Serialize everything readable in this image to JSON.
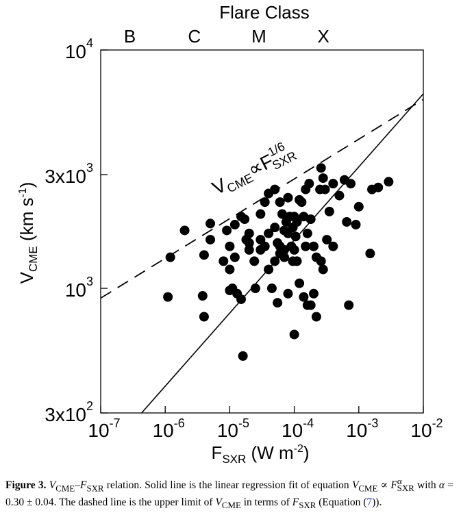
{
  "chart_data": {
    "type": "scatter",
    "top_title": "Flare Class",
    "flare_classes": [
      {
        "label": "B",
        "x": 3.2e-07
      },
      {
        "label": "C",
        "x": 3.2e-06
      },
      {
        "label": "M",
        "x": 3.2e-05
      },
      {
        "label": "X",
        "x": 0.00032
      }
    ],
    "xlabel": {
      "base": "F",
      "sub": "SXR",
      "units": " (W m",
      "exp": "-2",
      "close": ")"
    },
    "ylabel": {
      "base": "V",
      "sub": "CME",
      "units": " (km s",
      "exp": "-1",
      "close": ")"
    },
    "x_scale": "log",
    "y_scale": "log",
    "xlim": [
      1e-07,
      0.01
    ],
    "ylim": [
      300,
      10000
    ],
    "x_ticks": [
      {
        "value": 1e-07,
        "base": "10",
        "exp": "-7"
      },
      {
        "value": 1e-06,
        "base": "10",
        "exp": "-6"
      },
      {
        "value": 1e-05,
        "base": "10",
        "exp": "-5"
      },
      {
        "value": 0.0001,
        "base": "10",
        "exp": "-4"
      },
      {
        "value": 0.001,
        "base": "10",
        "exp": "-3"
      },
      {
        "value": 0.01,
        "base": "10",
        "exp": "-2"
      }
    ],
    "y_ticks": [
      {
        "value": 10000,
        "base": "10",
        "exp": "4"
      },
      {
        "value": 3000,
        "base": "3x10",
        "exp": "3"
      },
      {
        "value": 1000,
        "base": "10",
        "exp": "3"
      },
      {
        "value": 300,
        "base": "3x10",
        "exp": "2"
      }
    ],
    "solid_fit": {
      "alpha": 0.3,
      "x1": 4.3e-07,
      "y1": 300,
      "x2": 0.0105,
      "y2": 6650
    },
    "dashed_limit": {
      "exponent": "1/6",
      "x1": 1e-07,
      "y1": 910,
      "x2": 0.01,
      "y2": 6200
    },
    "dashed_label": {
      "base": "V",
      "sub1": "CME",
      "rel": "∝",
      "base2": "F",
      "exp": "1/6",
      "sub2": "SXR"
    },
    "points": [
      [
        1.2e-06,
        1350
      ],
      [
        1.1e-06,
        920
      ],
      [
        2e-06,
        1750
      ],
      [
        3.8e-06,
        930
      ],
      [
        4e-06,
        760
      ],
      [
        4e-06,
        1380
      ],
      [
        5e-06,
        1600
      ],
      [
        5e-06,
        1870
      ],
      [
        9e-06,
        1750
      ],
      [
        1e-05,
        1500
      ],
      [
        1e-05,
        1200
      ],
      [
        1e-05,
        980
      ],
      [
        1.1e-05,
        1000
      ],
      [
        1.2e-05,
        1850
      ],
      [
        1.5e-05,
        2000
      ],
      [
        1.5e-05,
        900
      ],
      [
        1.6e-05,
        520
      ],
      [
        1.7e-05,
        1950
      ],
      [
        1.8e-05,
        1600
      ],
      [
        2e-05,
        1550
      ],
      [
        2e-05,
        1450
      ],
      [
        2.5e-05,
        1000
      ],
      [
        3e-05,
        1600
      ],
      [
        3e-05,
        2050
      ],
      [
        3.5e-05,
        1500
      ],
      [
        3.5e-05,
        2300
      ],
      [
        4e-05,
        1200
      ],
      [
        4e-05,
        2500
      ],
      [
        5e-05,
        2600
      ],
      [
        4.5e-05,
        1000
      ],
      [
        5e-05,
        1800
      ],
      [
        5.5e-05,
        1550
      ],
      [
        6e-05,
        1500
      ],
      [
        6e-05,
        1400
      ],
      [
        6.5e-05,
        2050
      ],
      [
        7e-05,
        1350
      ],
      [
        7e-05,
        1450
      ],
      [
        7.5e-05,
        1900
      ],
      [
        8e-05,
        1700
      ],
      [
        8e-05,
        2400
      ],
      [
        8.5e-05,
        2000
      ],
      [
        9e-05,
        1500
      ],
      [
        9.5e-05,
        1800
      ],
      [
        9.5e-05,
        1300
      ],
      [
        0.0001,
        2000
      ],
      [
        0.0001,
        1450
      ],
      [
        0.000105,
        1650
      ],
      [
        0.00011,
        1300
      ],
      [
        0.00011,
        1900
      ],
      [
        0.00012,
        2350
      ],
      [
        0.00013,
        2300
      ],
      [
        0.00014,
        2000
      ],
      [
        0.00015,
        2600
      ],
      [
        0.00016,
        1700
      ],
      [
        0.00017,
        2750
      ],
      [
        0.00018,
        1950
      ],
      [
        0.0002,
        1500
      ],
      [
        0.00022,
        1350
      ],
      [
        0.00025,
        2600
      ],
      [
        0.00026,
        3200
      ],
      [
        0.00028,
        2900
      ],
      [
        0.0003,
        2600
      ],
      [
        0.0002,
        950
      ],
      [
        0.00022,
        760
      ],
      [
        0.00026,
        1300
      ],
      [
        0.00028,
        1200
      ],
      [
        0.00035,
        2100
      ],
      [
        0.0004,
        1500
      ],
      [
        0.0004,
        2750
      ],
      [
        0.0005,
        2450
      ],
      [
        0.0006,
        2850
      ],
      [
        0.00065,
        1900
      ],
      [
        0.0007,
        850
      ],
      [
        0.00075,
        2750
      ],
      [
        0.001,
        2200
      ],
      [
        0.0015,
        1400
      ],
      [
        0.0016,
        2600
      ],
      [
        0.002,
        2650
      ],
      [
        0.0029,
        2800
      ],
      [
        0.0001,
        640
      ],
      [
        8e-06,
        1300
      ],
      [
        1.2e-05,
        1350
      ],
      [
        1.3e-05,
        950
      ],
      [
        3e-05,
        1450
      ],
      [
        5e-05,
        1300
      ],
      [
        2.4e-05,
        1300
      ],
      [
        0.00016,
        850
      ],
      [
        0.00012,
        1050
      ],
      [
        0.00014,
        920
      ],
      [
        0.00018,
        850
      ],
      [
        0.0009,
        1850
      ],
      [
        5.5e-05,
        870
      ],
      [
        8e-05,
        950
      ],
      [
        4e-05,
        1700
      ],
      [
        6e-05,
        2300
      ],
      [
        7e-05,
        1750
      ],
      [
        0.00032,
        1600
      ],
      [
        0.00015,
        1500
      ],
      [
        2e-05,
        1700
      ]
    ]
  },
  "caption": {
    "figure_label": "Figure 3.",
    "part1_v": "V",
    "part1_v_sub": "CME",
    "part1_dash": "–",
    "part1_f": "F",
    "part1_f_sub": "SXR",
    "part1_rest": " relation. Solid line is the linear regression fit of equation",
    "eq_v": "V",
    "eq_v_sub": "CME",
    "eq_prop": " ∝ ",
    "eq_f": "F",
    "eq_f_sup": "α",
    "eq_f_sub": "SXR",
    "eq_mid": " with ",
    "eq_alpha": "α",
    "eq_value": " = 0.30 ± 0.04. The dashed line is the upper limit of",
    "last_v": "V",
    "last_v_sub": "CME",
    "last_mid": " in terms of ",
    "last_f": "F",
    "last_f_sub": "SXR",
    "last_eq_open": " (Equation (",
    "last_eq_ref": "7",
    "last_eq_close": "))."
  }
}
